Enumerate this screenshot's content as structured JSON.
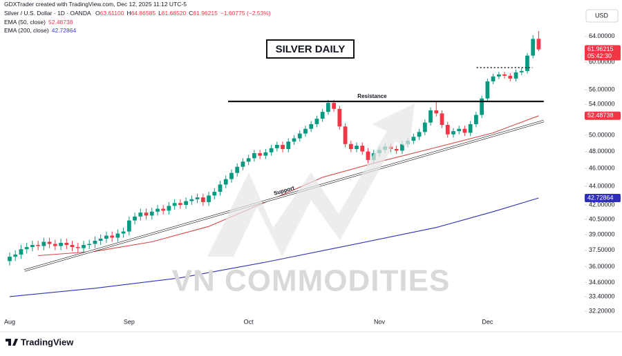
{
  "chart_data": {
    "type": "candlestick",
    "title": "SILVER DAILY",
    "header": "GDXTrader created with TradingView.com, Dec 12, 2025 11:12 UTC-5",
    "symbol": "Silver / U.S. Dollar · 1D · OANDA",
    "legend_ohlc": [
      {
        "key": "O",
        "text": "63.61100"
      },
      {
        "key": "H",
        "text": "64.86585"
      },
      {
        "key": "L",
        "text": "61.68520"
      },
      {
        "key": "C",
        "text": "61.96215"
      }
    ],
    "change": "−1.60775 (−2.53%)",
    "currency": "USD",
    "countdown": "05:42:30",
    "watermark": "VN COMMODITIES",
    "brand": "TradingView",
    "up_color": "#089981",
    "down_color": "#f23645",
    "log_scale": true,
    "grid": false,
    "ylim": [
      31.6,
      68.9
    ],
    "xlim": [
      -1.7,
      95.5
    ],
    "yticks": [
      {
        "value": 64,
        "label": "64.00000"
      },
      {
        "value": 60,
        "label": "60.00000"
      },
      {
        "value": 56,
        "label": "56.00000"
      },
      {
        "value": 54,
        "label": "54.00000"
      },
      {
        "value": 50,
        "label": "50.00000"
      },
      {
        "value": 48,
        "label": "48.00000"
      },
      {
        "value": 46,
        "label": "46.00000"
      },
      {
        "value": 44,
        "label": "44.00000"
      },
      {
        "value": 42,
        "label": "42.00000"
      },
      {
        "value": 40.5,
        "label": "40.50000"
      },
      {
        "value": 39,
        "label": "39.00000"
      },
      {
        "value": 37.5,
        "label": "37.50000"
      },
      {
        "value": 36,
        "label": "36.00000"
      },
      {
        "value": 34.6,
        "label": "34.60000"
      },
      {
        "value": 33.4,
        "label": "33.40000"
      },
      {
        "value": 32.2,
        "label": "32.20000"
      }
    ],
    "xticks": [
      {
        "value": 0,
        "label": "Aug"
      },
      {
        "value": 21,
        "label": "Sep"
      },
      {
        "value": 42,
        "label": "Oct"
      },
      {
        "value": 65,
        "label": "Nov"
      },
      {
        "value": 84,
        "label": "Dec"
      }
    ],
    "open": [
      36.5,
      36.9,
      37.1,
      37.6,
      37.8,
      38.0,
      37.9,
      38.3,
      38.1,
      37.9,
      38.2,
      38.0,
      37.8,
      37.7,
      38.0,
      38.1,
      38.4,
      38.6,
      38.9,
      38.7,
      39.1,
      39.3,
      40.4,
      40.8,
      41.2,
      40.9,
      41.3,
      41.6,
      41.4,
      41.9,
      42.2,
      42.0,
      42.4,
      42.6,
      42.8,
      42.3,
      43.0,
      43.4,
      44.2,
      44.8,
      45.5,
      46.2,
      46.8,
      47.2,
      47.8,
      47.5,
      47.9,
      48.4,
      48.8,
      48.3,
      49.2,
      49.6,
      50.2,
      50.8,
      51.4,
      52.1,
      53.0,
      54.2,
      53.4,
      51.1,
      48.9,
      48.3,
      48.7,
      48.0,
      47.0,
      47.8,
      48.2,
      48.6,
      48.3,
      48.1,
      48.9,
      49.3,
      49.8,
      50.4,
      51.6,
      53.2,
      52.8,
      51.3,
      50.1,
      50.5,
      50.8,
      50.3,
      51.4,
      52.6,
      54.8,
      57.2,
      57.9,
      58.2,
      58.0,
      57.6,
      58.5,
      58.7,
      61.0,
      63.611
    ],
    "high": [
      37.3,
      37.5,
      38.0,
      38.2,
      38.4,
      38.4,
      38.7,
      38.7,
      38.5,
      38.6,
      38.6,
      38.4,
      38.2,
      38.4,
      38.5,
      38.8,
      39.0,
      39.3,
      39.3,
      39.5,
      39.7,
      40.8,
      41.2,
      41.6,
      41.6,
      41.7,
      42.0,
      42.0,
      42.3,
      42.6,
      42.6,
      42.8,
      43.0,
      43.2,
      43.2,
      43.4,
      43.8,
      44.6,
      45.2,
      45.9,
      46.6,
      47.2,
      47.6,
      48.2,
      48.2,
      48.3,
      48.8,
      49.2,
      49.2,
      49.6,
      50.0,
      50.6,
      51.2,
      51.8,
      52.5,
      53.4,
      54.6,
      54.6,
      53.8,
      51.5,
      49.3,
      49.1,
      49.1,
      48.4,
      48.2,
      48.6,
      49.0,
      49.0,
      48.7,
      49.3,
      49.7,
      50.2,
      50.8,
      52.0,
      53.6,
      54.4,
      53.2,
      51.7,
      50.9,
      51.2,
      51.2,
      51.8,
      53.0,
      55.2,
      57.6,
      58.3,
      58.6,
      58.6,
      58.4,
      58.9,
      59.1,
      61.4,
      64.2,
      64.86585
    ],
    "low": [
      36.1,
      36.5,
      36.7,
      37.2,
      37.4,
      37.5,
      37.5,
      37.7,
      37.5,
      37.5,
      37.6,
      37.4,
      37.3,
      37.3,
      37.6,
      37.7,
      38.0,
      38.2,
      38.3,
      38.3,
      38.7,
      38.9,
      40.0,
      40.4,
      40.5,
      40.5,
      40.9,
      41.0,
      41.0,
      41.5,
      41.6,
      41.6,
      42.0,
      42.2,
      41.9,
      41.9,
      42.6,
      43.0,
      43.8,
      44.4,
      45.1,
      45.8,
      46.4,
      46.8,
      47.1,
      47.1,
      47.5,
      48.0,
      47.9,
      47.9,
      48.8,
      49.2,
      49.8,
      50.4,
      51.0,
      51.7,
      52.6,
      53.0,
      50.7,
      48.5,
      47.9,
      47.9,
      47.6,
      46.6,
      46.6,
      47.4,
      47.8,
      47.9,
      47.7,
      47.7,
      48.5,
      48.9,
      49.4,
      50.0,
      51.2,
      52.4,
      50.9,
      49.7,
      49.7,
      50.1,
      49.9,
      49.9,
      51.0,
      52.2,
      54.4,
      56.8,
      57.5,
      57.6,
      57.2,
      57.2,
      58.1,
      58.3,
      60.6,
      61.6852
    ],
    "close": [
      36.9,
      37.1,
      37.6,
      37.8,
      38.0,
      37.9,
      38.3,
      38.1,
      37.9,
      38.2,
      38.0,
      37.8,
      37.7,
      38.0,
      38.1,
      38.4,
      38.6,
      38.9,
      38.7,
      39.1,
      39.3,
      40.4,
      40.8,
      41.2,
      40.9,
      41.3,
      41.6,
      41.4,
      41.9,
      42.2,
      42.0,
      42.4,
      42.6,
      42.8,
      42.3,
      43.0,
      43.4,
      44.2,
      44.8,
      45.5,
      46.2,
      46.8,
      47.2,
      47.8,
      47.5,
      47.9,
      48.4,
      48.8,
      48.3,
      49.2,
      49.6,
      50.2,
      50.8,
      51.4,
      52.1,
      53.0,
      54.2,
      53.4,
      51.1,
      48.9,
      48.3,
      48.7,
      48.0,
      47.0,
      47.8,
      48.2,
      48.6,
      48.3,
      48.1,
      48.9,
      49.3,
      49.8,
      50.4,
      51.6,
      53.2,
      52.8,
      51.3,
      50.1,
      50.5,
      50.8,
      50.3,
      51.4,
      52.6,
      54.8,
      57.2,
      57.9,
      58.2,
      58.0,
      57.6,
      58.5,
      58.7,
      61.0,
      63.6,
      61.96215
    ],
    "series": [
      {
        "name": "EMA (50, close)",
        "color": "#d64545",
        "x": [
          5,
          15,
          25,
          35,
          45,
          55,
          65,
          75,
          85,
          93
        ],
        "values": [
          37.0,
          37.4,
          38.3,
          39.8,
          42.3,
          45.0,
          46.8,
          48.5,
          50.3,
          52.48738
        ]
      },
      {
        "name": "EMA (200, close)",
        "color": "#2e2eb8",
        "x": [
          0,
          15,
          30,
          45,
          60,
          75,
          85,
          93
        ],
        "values": [
          33.4,
          34.1,
          35.0,
          36.4,
          38.0,
          39.7,
          41.3,
          42.72864
        ]
      }
    ],
    "annotations": [
      {
        "text": "Resistance",
        "x": [
          38.4,
          93.9
        ],
        "y": [
          54.4,
          54.4
        ],
        "style": "solid"
      },
      {
        "text": "Support",
        "x": [
          2.6,
          93.9
        ],
        "y": [
          35.65,
          51.8
        ],
        "style": "solid"
      },
      {
        "x": [
          82.1,
          91.9
        ],
        "y": [
          59.2,
          59.2
        ],
        "style": "dotted"
      }
    ]
  }
}
